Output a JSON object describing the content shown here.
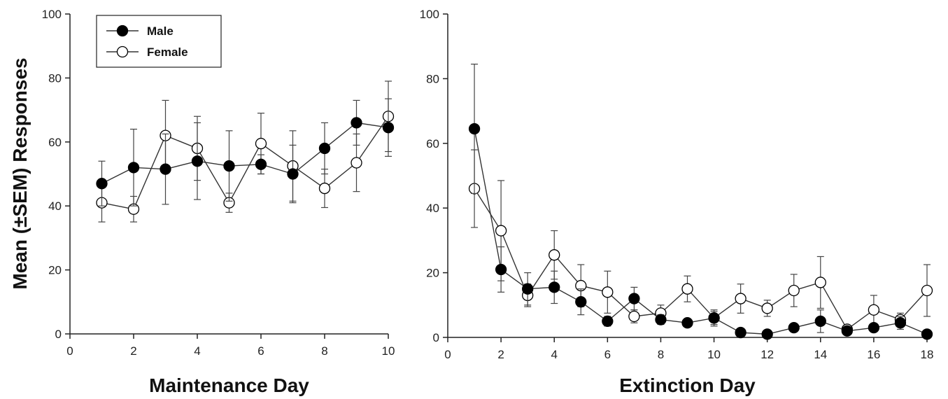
{
  "ylabel": "Mean (±SEM) Responses",
  "legend": {
    "entries": [
      "Male",
      "Female"
    ],
    "placement": "top-left"
  },
  "colors": {
    "male": "#000000",
    "female": "#ffffff",
    "line": "#333333"
  },
  "chart_data": [
    {
      "type": "line",
      "xlabel": "Maintenance Day",
      "ylabel": "Mean (±SEM) Responses",
      "xlim": [
        0,
        10
      ],
      "ylim": [
        0,
        100
      ],
      "xticks": [
        0,
        2,
        4,
        6,
        8,
        10
      ],
      "yticks": [
        0,
        20,
        40,
        60,
        80,
        100
      ],
      "grid": false,
      "legend": "top-left",
      "series": [
        {
          "name": "Male",
          "marker": "filled-circle",
          "x": [
            1,
            2,
            3,
            4,
            5,
            6,
            7,
            8,
            9,
            10
          ],
          "y": [
            47,
            52,
            51.5,
            54,
            52.5,
            53,
            50,
            58,
            66,
            64.5
          ],
          "err": [
            7,
            12,
            11,
            12,
            11,
            3,
            9,
            8,
            7,
            9
          ]
        },
        {
          "name": "Female",
          "marker": "open-circle",
          "x": [
            1,
            2,
            3,
            4,
            5,
            6,
            7,
            8,
            9,
            10
          ],
          "y": [
            41,
            39,
            62,
            58,
            41,
            59.5,
            52.5,
            45.5,
            53.5,
            68
          ],
          "err": [
            6,
            4,
            11,
            10,
            3,
            9.5,
            11,
            6,
            9,
            11
          ]
        }
      ]
    },
    {
      "type": "line",
      "xlabel": "Extinction Day",
      "ylabel": "",
      "xlim": [
        0,
        18
      ],
      "ylim": [
        0,
        100
      ],
      "xticks": [
        0,
        2,
        4,
        6,
        8,
        10,
        12,
        14,
        16,
        18
      ],
      "yticks": [
        0,
        20,
        40,
        60,
        80,
        100
      ],
      "grid": false,
      "series": [
        {
          "name": "Male",
          "marker": "filled-circle",
          "x": [
            1,
            2,
            3,
            4,
            5,
            6,
            7,
            8,
            9,
            10,
            11,
            12,
            13,
            14,
            15,
            16,
            17,
            18
          ],
          "y": [
            64.5,
            21,
            15,
            15.5,
            11,
            5,
            12,
            5.5,
            4.5,
            6,
            1.5,
            1,
            3,
            5,
            2,
            3,
            4.5,
            1
          ],
          "err": [
            20,
            7,
            5,
            5,
            4,
            1.5,
            3.5,
            1.5,
            1,
            2,
            0.5,
            0.5,
            1,
            3.5,
            1,
            1,
            2,
            0.5
          ]
        },
        {
          "name": "Female",
          "marker": "open-circle",
          "x": [
            1,
            2,
            3,
            4,
            5,
            6,
            7,
            8,
            9,
            10,
            11,
            12,
            13,
            14,
            15,
            16,
            17,
            18
          ],
          "y": [
            46,
            33,
            13,
            25.5,
            16,
            14,
            6.5,
            7.5,
            15,
            6,
            12,
            9,
            14.5,
            17,
            2.5,
            8.5,
            5.5,
            14.5
          ],
          "err": [
            12,
            15.5,
            3.5,
            7.5,
            6.5,
            6.5,
            2,
            2.5,
            4,
            2.5,
            4.5,
            2.5,
            5,
            8,
            1,
            4.5,
            2,
            8
          ]
        }
      ]
    }
  ]
}
